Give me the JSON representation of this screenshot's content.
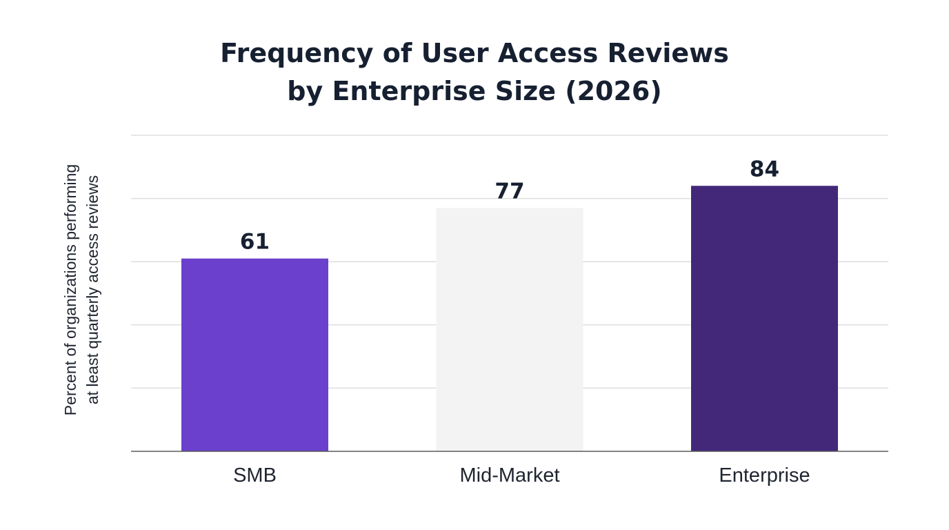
{
  "chart_data": {
    "type": "bar",
    "title": [
      "Frequency of User Access Reviews",
      "by Enterprise Size (2026)"
    ],
    "ylabel": [
      "Percent of organizations performing",
      "at least quarterly access reviews"
    ],
    "xlabel": "",
    "categories": [
      "SMB",
      "Mid-Market",
      "Enterprise"
    ],
    "values": [
      61,
      77,
      84
    ],
    "bar_colors": [
      "#6a40cc",
      "#f3f3f3",
      "#43287a"
    ],
    "ylim": [
      0,
      100
    ],
    "grid": true,
    "data_labels": true
  },
  "colors": {
    "gridline": "#dedede",
    "baseline": "#5a5a5a",
    "text": "#162031"
  }
}
